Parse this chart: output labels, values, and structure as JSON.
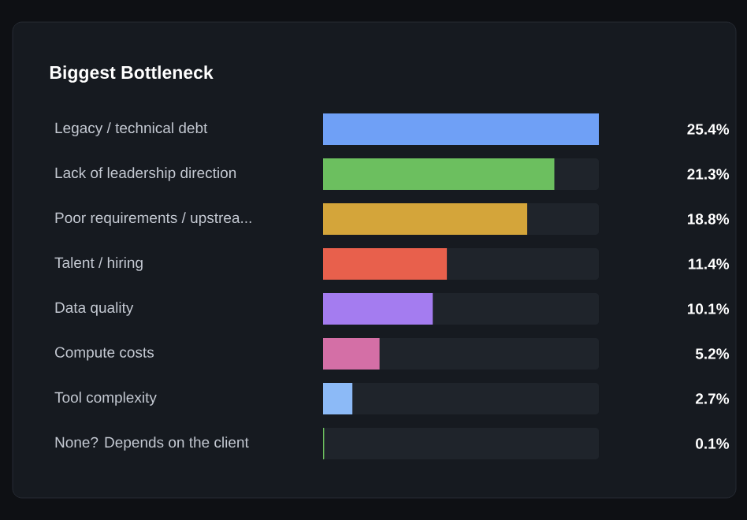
{
  "chart_data": {
    "type": "bar",
    "orientation": "horizontal",
    "title": "Biggest Bottleneck",
    "categories": [
      "Legacy / technical debt",
      "Lack of leadership direction",
      "Poor requirements / upstrea...",
      "Talent / hiring",
      "Data quality",
      "Compute costs",
      "Tool complexity",
      "None? Depends on the client"
    ],
    "values": [
      25.4,
      21.3,
      18.8,
      11.4,
      10.1,
      5.2,
      2.7,
      0.1
    ],
    "colors": [
      "#6fa0f6",
      "#6cbf5f",
      "#d4a53a",
      "#e8604c",
      "#a47cf0",
      "#d46fa6",
      "#8cbaf7",
      "#6cbf5f"
    ],
    "value_labels": [
      "25.4%",
      "21.3%",
      "18.8%",
      "11.4%",
      "10.1%",
      "5.2%",
      "2.7%",
      "0.1%"
    ],
    "tick_labels": "y"
  }
}
